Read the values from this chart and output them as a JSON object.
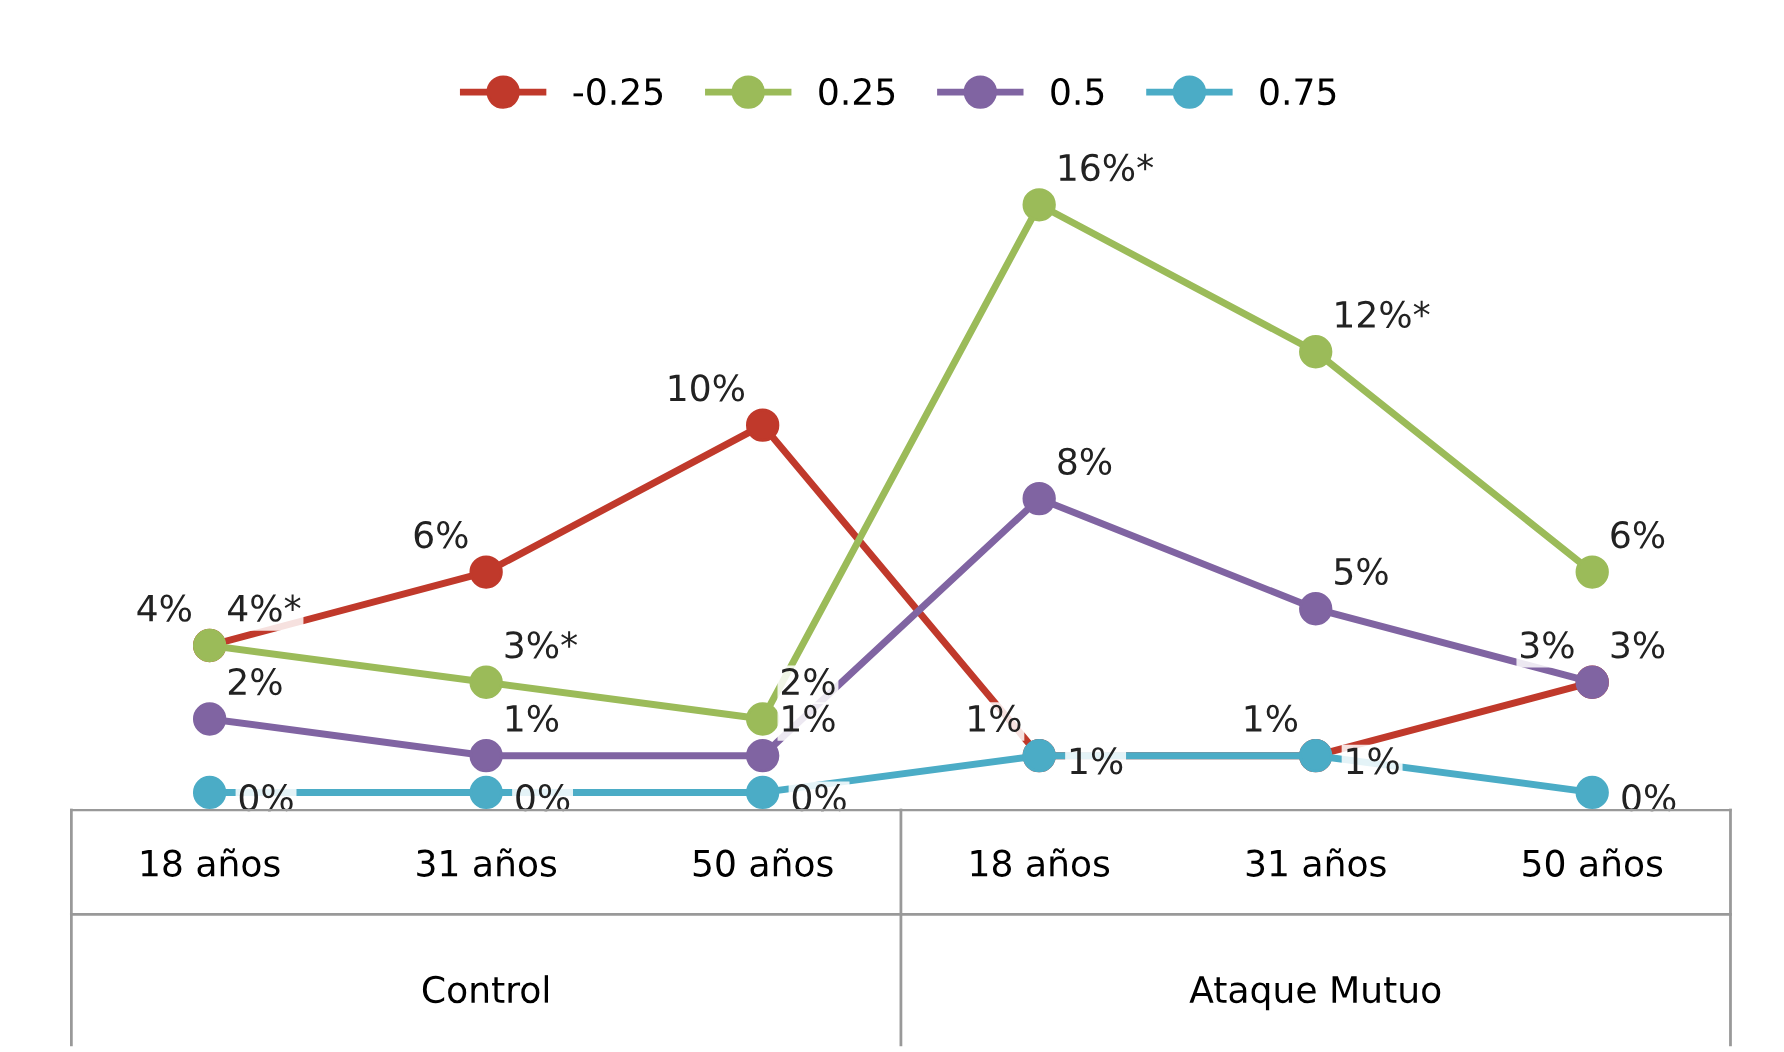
{
  "chart_data": {
    "type": "line",
    "categories": [
      "18 años",
      "31 años",
      "50 años",
      "18 años",
      "31 años",
      "50 años"
    ],
    "annotations": [
      "Control",
      "Ataque Mutuo"
    ],
    "series": [
      {
        "name": "-0.25",
        "color": "#c0392b",
        "values": [
          4,
          6,
          10,
          1,
          1,
          3
        ],
        "value_labels": [
          "4%",
          "6%",
          "10%",
          "1%",
          "1%",
          "3%"
        ]
      },
      {
        "name": "0.25",
        "color": "#9bbb59",
        "values": [
          4,
          3,
          2,
          16,
          12,
          6
        ],
        "value_labels": [
          "4%*",
          "3%*",
          "2%",
          "16%*",
          "12%*",
          "6%"
        ]
      },
      {
        "name": "0.5",
        "color": "#8064a2",
        "values": [
          2,
          1,
          1,
          8,
          5,
          3
        ],
        "value_labels": [
          "2%",
          "1%",
          "1%",
          "8%",
          "5%",
          "3%"
        ]
      },
      {
        "name": "0.75",
        "color": "#4bacc6",
        "values": [
          0,
          0,
          0,
          1,
          1,
          0
        ],
        "value_labels": [
          "0%",
          "0%",
          "0%",
          "1%",
          "1%",
          "0%"
        ]
      }
    ],
    "marker": "circle",
    "line_style": "solid",
    "legend": "top",
    "grid": false
  }
}
